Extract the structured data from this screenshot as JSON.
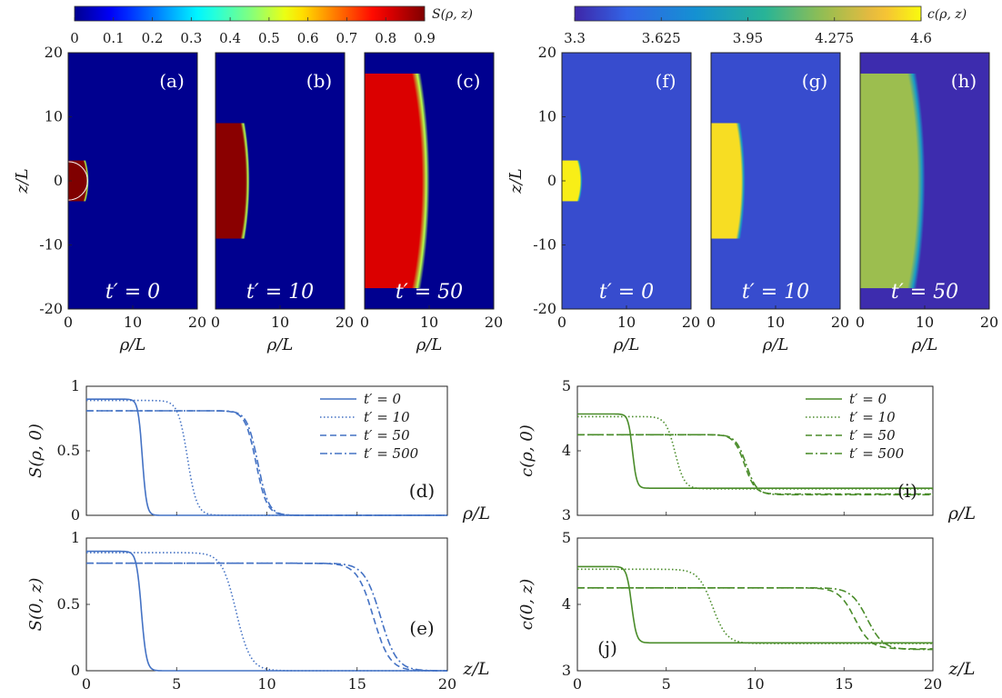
{
  "figure": {
    "colorbars": [
      {
        "label": "S(ρ, z)",
        "ticks": [
          "0",
          "0.1",
          "0.2",
          "0.3",
          "0.4",
          "0.5",
          "0.6",
          "0.7",
          "0.8",
          "0.9"
        ],
        "colormap": "jet"
      },
      {
        "label": "c(ρ, z)",
        "ticks": [
          "3.3",
          "3.625",
          "3.95",
          "4.275",
          "4.6"
        ],
        "colormap": "parula"
      }
    ],
    "heatmaps": {
      "xlabel": "ρ/L",
      "ylabel": "z/L",
      "xticks": [
        "0",
        "10",
        "20"
      ],
      "yticks": [
        "20",
        "10",
        "0",
        "-10",
        "-20"
      ],
      "panels": [
        {
          "tag": "(a)",
          "time": "t′ = 0"
        },
        {
          "tag": "(b)",
          "time": "t′ = 10"
        },
        {
          "tag": "(c)",
          "time": "t′ = 50"
        },
        {
          "tag": "(f)",
          "time": "t′ = 0"
        },
        {
          "tag": "(g)",
          "time": "t′ = 10"
        },
        {
          "tag": "(h)",
          "time": "t′ = 50"
        }
      ]
    },
    "lineplots": {
      "legend": [
        "t′ = 0",
        "t′ = 10",
        "t′ = 50",
        "t′ = 500"
      ],
      "xticks": [
        "0",
        "5",
        "10",
        "15",
        "20"
      ],
      "panels": [
        {
          "tag": "(d)",
          "ylabel": "S(ρ, 0)",
          "xlabel": "ρ/L",
          "yticks": [
            "0",
            "0.5",
            "1"
          ]
        },
        {
          "tag": "(e)",
          "ylabel": "S(0, z)",
          "xlabel": "z/L",
          "yticks": [
            "0",
            "0.5",
            "1"
          ]
        },
        {
          "tag": "(i)",
          "ylabel": "c(ρ, 0)",
          "xlabel": "ρ/L",
          "yticks": [
            "3",
            "4",
            "5"
          ]
        },
        {
          "tag": "(j)",
          "ylabel": "c(0, z)",
          "xlabel": "z/L",
          "yticks": [
            "3",
            "4",
            "5"
          ]
        }
      ]
    }
  },
  "chart_data": [
    {
      "type": "heatmap",
      "panel": "(a)",
      "colormap": "jet",
      "xlim": [
        0,
        20
      ],
      "ylim": [
        -20,
        20
      ],
      "background": 0,
      "droplet": {
        "value": 0.9,
        "semi_axis_rho": 3,
        "semi_axis_z": 3
      }
    },
    {
      "type": "heatmap",
      "panel": "(b)",
      "colormap": "jet",
      "xlim": [
        0,
        20
      ],
      "ylim": [
        -20,
        20
      ],
      "background": 0,
      "droplet": {
        "value": 0.89,
        "semi_axis_rho": 5,
        "semi_axis_z": 8.5
      }
    },
    {
      "type": "heatmap",
      "panel": "(c)",
      "colormap": "jet",
      "xlim": [
        0,
        20
      ],
      "ylim": [
        -20,
        20
      ],
      "background": 0,
      "droplet": {
        "value": 0.81,
        "semi_axis_rho": 9.5,
        "semi_axis_z": 15.8
      }
    },
    {
      "type": "heatmap",
      "panel": "(f)",
      "colormap": "parula",
      "xlim": [
        0,
        20
      ],
      "ylim": [
        -20,
        20
      ],
      "background": 3.42,
      "droplet": {
        "value": 4.57,
        "semi_axis_rho": 3,
        "semi_axis_z": 3
      }
    },
    {
      "type": "heatmap",
      "panel": "(g)",
      "colormap": "parula",
      "xlim": [
        0,
        20
      ],
      "ylim": [
        -20,
        20
      ],
      "background": 3.42,
      "droplet": {
        "value": 4.53,
        "semi_axis_rho": 5,
        "semi_axis_z": 8.5
      }
    },
    {
      "type": "heatmap",
      "panel": "(h)",
      "colormap": "parula",
      "xlim": [
        0,
        20
      ],
      "ylim": [
        -20,
        20
      ],
      "background": 3.32,
      "droplet": {
        "value": 4.25,
        "semi_axis_rho": 9.5,
        "semi_axis_z": 15.8
      }
    },
    {
      "type": "line",
      "panel": "(d)",
      "xlim": [
        0,
        20
      ],
      "ylim": [
        0,
        1
      ],
      "xlabel": "ρ/L",
      "ylabel": "S(ρ, 0)",
      "series": [
        {
          "name": "t′ = 0",
          "style": "solid",
          "color": "#4472c4",
          "plateau": 0.9,
          "base": 0,
          "front": 3.1,
          "width": 0.12
        },
        {
          "name": "t′ = 10",
          "style": "dotted",
          "color": "#4472c4",
          "plateau": 0.89,
          "base": 0,
          "front": 5.6,
          "width": 0.26
        },
        {
          "name": "t′ = 50",
          "style": "dashed",
          "color": "#4472c4",
          "plateau": 0.81,
          "base": 0,
          "front": 9.4,
          "width": 0.3
        },
        {
          "name": "t′ = 500",
          "style": "dashdot",
          "color": "#4472c4",
          "plateau": 0.81,
          "base": 0,
          "front": 9.5,
          "width": 0.3
        }
      ]
    },
    {
      "type": "line",
      "panel": "(e)",
      "xlim": [
        0,
        20
      ],
      "ylim": [
        0,
        1
      ],
      "xlabel": "z/L",
      "ylabel": "S(0, z)",
      "series": [
        {
          "name": "t′ = 0",
          "style": "solid",
          "color": "#4472c4",
          "plateau": 0.9,
          "base": 0,
          "front": 3.05,
          "width": 0.14
        },
        {
          "name": "t′ = 10",
          "style": "dotted",
          "color": "#4472c4",
          "plateau": 0.89,
          "base": 0,
          "front": 8.3,
          "width": 0.4
        },
        {
          "name": "t′ = 50",
          "style": "dashed",
          "color": "#4472c4",
          "plateau": 0.81,
          "base": 0,
          "front": 15.9,
          "width": 0.45
        },
        {
          "name": "t′ = 500",
          "style": "dashdot",
          "color": "#4472c4",
          "plateau": 0.81,
          "base": 0,
          "front": 16.3,
          "width": 0.45
        }
      ]
    },
    {
      "type": "line",
      "panel": "(i)",
      "xlim": [
        0,
        20
      ],
      "ylim": [
        3,
        5
      ],
      "xlabel": "ρ/L",
      "ylabel": "c(ρ, 0)",
      "series": [
        {
          "name": "t′ = 0",
          "style": "solid",
          "color": "#4a8c2a",
          "plateau": 4.57,
          "base": 3.42,
          "front": 3.1,
          "width": 0.12
        },
        {
          "name": "t′ = 10",
          "style": "dotted",
          "color": "#4a8c2a",
          "plateau": 4.53,
          "base": 3.41,
          "front": 5.5,
          "width": 0.26
        },
        {
          "name": "t′ = 50",
          "style": "dashed",
          "color": "#4a8c2a",
          "plateau": 4.25,
          "base": 3.33,
          "front": 9.4,
          "width": 0.3
        },
        {
          "name": "t′ = 500",
          "style": "dashdot",
          "color": "#4a8c2a",
          "plateau": 4.25,
          "base": 3.32,
          "front": 9.5,
          "width": 0.3
        }
      ]
    },
    {
      "type": "line",
      "panel": "(j)",
      "xlim": [
        0,
        20
      ],
      "ylim": [
        3,
        5
      ],
      "xlabel": "z/L",
      "ylabel": "c(0, z)",
      "series": [
        {
          "name": "t′ = 0",
          "style": "solid",
          "color": "#4a8c2a",
          "plateau": 4.57,
          "base": 3.42,
          "front": 3.05,
          "width": 0.14
        },
        {
          "name": "t′ = 10",
          "style": "dotted",
          "color": "#4a8c2a",
          "plateau": 4.53,
          "base": 3.41,
          "front": 7.6,
          "width": 0.4
        },
        {
          "name": "t′ = 50",
          "style": "dashed",
          "color": "#4a8c2a",
          "plateau": 4.25,
          "base": 3.33,
          "front": 15.6,
          "width": 0.45
        },
        {
          "name": "t′ = 500",
          "style": "dashdot",
          "color": "#4a8c2a",
          "plateau": 4.25,
          "base": 3.32,
          "front": 16.3,
          "width": 0.45
        }
      ]
    }
  ]
}
